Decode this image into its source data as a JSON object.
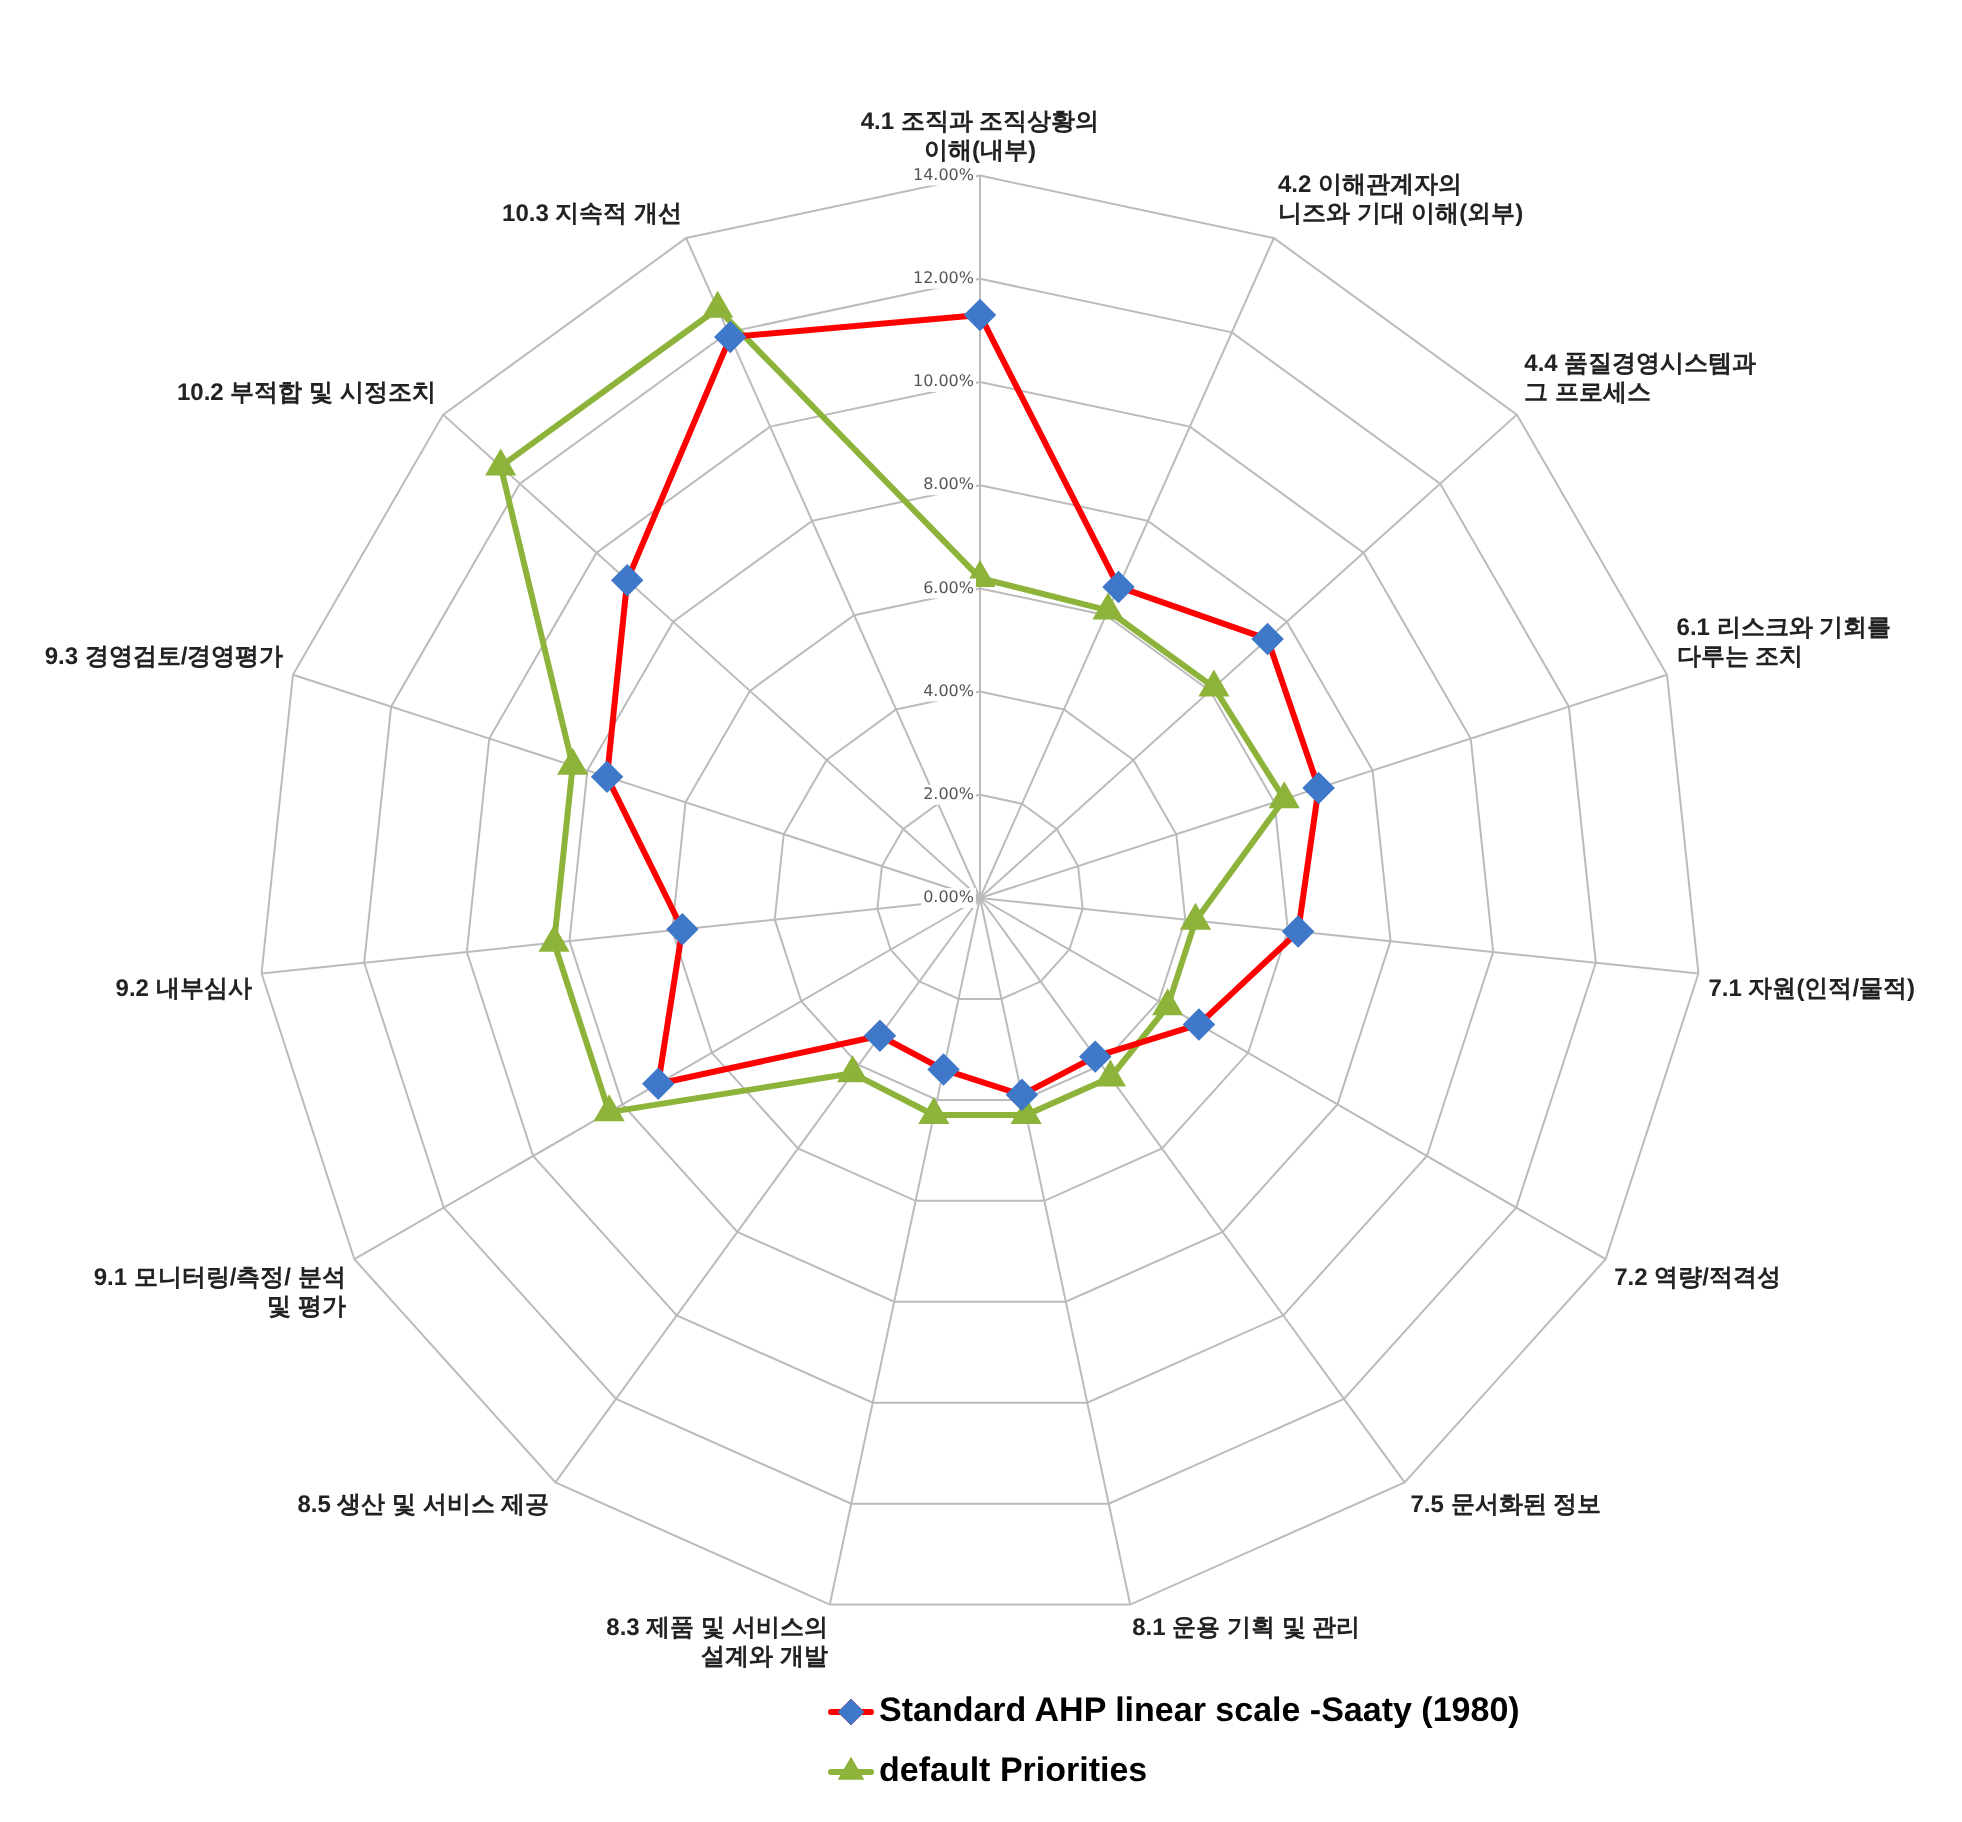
{
  "chart_data": {
    "type": "radar",
    "categories": [
      "4.1 조직과 조직상황의\n이해(내부)",
      "4.2 이해관계자의\n니즈와 기대 이해(외부)",
      "4.4 품질경영시스템과\n그 프로세스",
      "6.1 리스크와 기회를\n다루는 조치",
      "7.1 자원(인적/물적)",
      "7.2 역량/적격성",
      "7.5 문서화된 정보",
      "8.1 운용 기획 및 관리",
      "8.3 제품 및 서비스의\n설계와 개발",
      "8.5 생산 및 서비스 제공",
      "9.1 모니터링/측정/ 분석\n및 평가",
      "9.2 내부심사",
      "9.3 경영검토/경영평가",
      "10.2 부적합 및 시정조치",
      "10.3 지속적 개선"
    ],
    "series": [
      {
        "name": "Standard AHP linear scale -Saaty (1980)",
        "color": "#ff0000",
        "marker": "diamond",
        "values": [
          11.3,
          6.6,
          7.5,
          6.9,
          6.2,
          4.9,
          3.8,
          3.9,
          3.4,
          3.3,
          7.2,
          5.8,
          7.6,
          9.2,
          11.9
        ]
      },
      {
        "name": "default Priorities",
        "color": "#8db33a",
        "marker": "triangle",
        "values": [
          6.2,
          6.1,
          6.1,
          6.2,
          4.2,
          4.2,
          4.3,
          4.3,
          4.3,
          4.2,
          8.3,
          8.3,
          8.3,
          12.5,
          12.5
        ]
      }
    ],
    "ylim": [
      0,
      14
    ],
    "yticks": [
      {
        "value": 0,
        "label": "0.00%"
      },
      {
        "value": 2,
        "label": "2.00%"
      },
      {
        "value": 4,
        "label": "4.00%"
      },
      {
        "value": 6,
        "label": "6.00%"
      },
      {
        "value": 8,
        "label": "8.00%"
      },
      {
        "value": 10,
        "label": "10.00%"
      },
      {
        "value": 12,
        "label": "12.00%"
      },
      {
        "value": 14,
        "label": "14.00%"
      }
    ],
    "grid": true,
    "legend": "bottom"
  }
}
